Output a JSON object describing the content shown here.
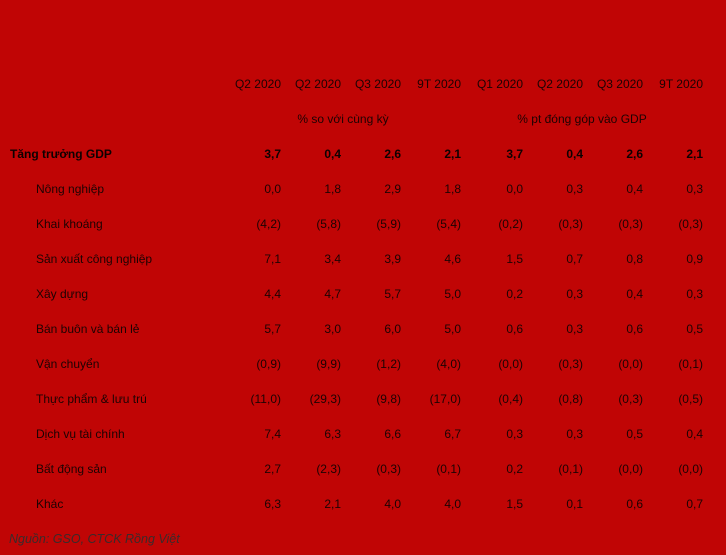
{
  "colors": {
    "background": "#C00505",
    "text": "#1C0303",
    "footer_text": "#3A2B2B"
  },
  "chart_data": {
    "type": "table",
    "title": "",
    "column_groups": [
      {
        "label": "% so với cùng kỳ",
        "columns": [
          "Q2 2020",
          "Q2 2020",
          "Q3 2020",
          "9T 2020"
        ]
      },
      {
        "label": "% pt đóng góp vào GDP",
        "columns": [
          "Q1 2020",
          "Q2 2020",
          "Q3 2020",
          "9T 2020"
        ]
      }
    ],
    "rows": [
      {
        "label": "Tăng trưởng GDP",
        "bold": true,
        "values": [
          "3,7",
          "0,4",
          "2,6",
          "2,1",
          "3,7",
          "0,4",
          "2,6",
          "2,1"
        ]
      },
      {
        "label": "Nông nghiệp",
        "bold": false,
        "values": [
          "0,0",
          "1,8",
          "2,9",
          "1,8",
          "0,0",
          "0,3",
          "0,4",
          "0,3"
        ]
      },
      {
        "label": "Khai khoáng",
        "bold": false,
        "values": [
          "(4,2)",
          "(5,8)",
          "(5,9)",
          "(5,4)",
          "(0,2)",
          "(0,3)",
          "(0,3)",
          "(0,3)"
        ]
      },
      {
        "label": "Sản xuất công nghiệp",
        "bold": false,
        "values": [
          "7,1",
          "3,4",
          "3,9",
          "4,6",
          "1,5",
          "0,7",
          "0,8",
          "0,9"
        ]
      },
      {
        "label": "Xây dựng",
        "bold": false,
        "values": [
          "4,4",
          "4,7",
          "5,7",
          "5,0",
          "0,2",
          "0,3",
          "0,4",
          "0,3"
        ]
      },
      {
        "label": "Bán buôn và bán lẻ",
        "bold": false,
        "values": [
          "5,7",
          "3,0",
          "6,0",
          "5,0",
          "0,6",
          "0,3",
          "0,6",
          "0,5"
        ]
      },
      {
        "label": "Vận chuyển",
        "bold": false,
        "values": [
          "(0,9)",
          "(9,9)",
          "(1,2)",
          "(4,0)",
          "(0,0)",
          "(0,3)",
          "(0,0)",
          "(0,1)"
        ]
      },
      {
        "label": "Thực phẩm & lưu trú",
        "bold": false,
        "values": [
          "(11,0)",
          "(29,3)",
          "(9,8)",
          "(17,0)",
          "(0,4)",
          "(0,8)",
          "(0,3)",
          "(0,5)"
        ]
      },
      {
        "label": "Dịch vụ tài chính",
        "bold": false,
        "values": [
          "7,4",
          "6,3",
          "6,6",
          "6,7",
          "0,3",
          "0,3",
          "0,5",
          "0,4"
        ]
      },
      {
        "label": "Bất động sản",
        "bold": false,
        "values": [
          "2,7",
          "(2,3)",
          "(0,3)",
          "(0,1)",
          "0,2",
          "(0,1)",
          "(0,0)",
          "(0,0)"
        ]
      },
      {
        "label": "Khác",
        "bold": false,
        "values": [
          "6,3",
          "2,1",
          "4,0",
          "4,0",
          "1,5",
          "0,1",
          "0,6",
          "0,7"
        ]
      }
    ],
    "source_note": "Nguồn: GSO, CTCK Rồng Việt"
  }
}
